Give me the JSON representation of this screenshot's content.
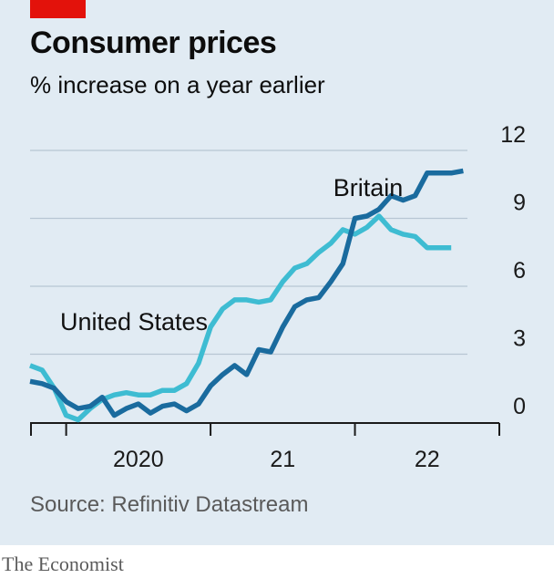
{
  "header": {
    "title": "Consumer prices",
    "subtitle": "% increase on a year earlier"
  },
  "footer": {
    "source": "Source: Refinitiv Datastream",
    "brand": "The Economist"
  },
  "colors": {
    "background": "#e1ebf3",
    "accent": "#e3120b",
    "britain": "#1a6b9e",
    "united_states": "#3ebcd2",
    "grid": "#b7c6d3",
    "axis": "#1a1a1a"
  },
  "chart_data": {
    "type": "line",
    "ylim": [
      0,
      12
    ],
    "yticks": [
      {
        "value": 0,
        "label": "0"
      },
      {
        "value": 3,
        "label": "3"
      },
      {
        "value": 6,
        "label": "6"
      },
      {
        "value": 9,
        "label": "9"
      },
      {
        "value": 12,
        "label": "12"
      }
    ],
    "x_start": "2019-10",
    "x_end": "2023-01",
    "year_ticks": [
      "2020-01",
      "2021-01",
      "2022-01",
      "2023-01"
    ],
    "year_labels": [
      {
        "label": "2020",
        "position": "2020-07"
      },
      {
        "label": "21",
        "position": "2021-07"
      },
      {
        "label": "22",
        "position": "2022-07"
      }
    ],
    "grid": true,
    "series": [
      {
        "name": "Britain",
        "color": "#1a6b9e",
        "x": [
          "2019-10",
          "2019-11",
          "2019-12",
          "2020-01",
          "2020-02",
          "2020-03",
          "2020-04",
          "2020-05",
          "2020-06",
          "2020-07",
          "2020-08",
          "2020-09",
          "2020-10",
          "2020-11",
          "2020-12",
          "2021-01",
          "2021-02",
          "2021-03",
          "2021-04",
          "2021-05",
          "2021-06",
          "2021-07",
          "2021-08",
          "2021-09",
          "2021-10",
          "2021-11",
          "2021-12",
          "2022-01",
          "2022-02",
          "2022-03",
          "2022-04",
          "2022-05",
          "2022-06",
          "2022-07",
          "2022-08",
          "2022-09",
          "2022-10"
        ],
        "y": [
          1.8,
          1.7,
          1.5,
          0.9,
          0.6,
          0.7,
          1.1,
          0.3,
          0.6,
          0.8,
          0.4,
          0.7,
          0.8,
          0.5,
          0.8,
          1.6,
          2.1,
          2.5,
          2.1,
          3.2,
          3.1,
          4.2,
          5.1,
          5.4,
          5.5,
          6.2,
          7.0,
          9.0,
          9.1,
          9.4,
          10.0,
          9.8,
          10.0,
          11.0,
          11.0,
          11.0,
          11.1
        ],
        "label": "Britain"
      },
      {
        "name": "United States",
        "color": "#3ebcd2",
        "x": [
          "2019-10",
          "2019-11",
          "2019-12",
          "2020-01",
          "2020-02",
          "2020-03",
          "2020-04",
          "2020-05",
          "2020-06",
          "2020-07",
          "2020-08",
          "2020-09",
          "2020-10",
          "2020-11",
          "2020-12",
          "2021-01",
          "2021-02",
          "2021-03",
          "2021-04",
          "2021-05",
          "2021-06",
          "2021-07",
          "2021-08",
          "2021-09",
          "2021-10",
          "2021-11",
          "2021-12",
          "2022-01",
          "2022-02",
          "2022-03",
          "2022-04",
          "2022-05",
          "2022-06",
          "2022-07",
          "2022-08",
          "2022-09"
        ],
        "y": [
          2.5,
          2.3,
          1.5,
          0.3,
          0.1,
          0.6,
          1.0,
          1.2,
          1.3,
          1.2,
          1.2,
          1.4,
          1.4,
          1.7,
          2.6,
          4.2,
          5.0,
          5.4,
          5.4,
          5.3,
          5.4,
          6.2,
          6.8,
          7.0,
          7.5,
          7.9,
          8.5,
          8.3,
          8.6,
          9.1,
          8.5,
          8.3,
          8.2,
          7.7,
          7.7,
          7.7
        ],
        "label": "United States"
      }
    ]
  }
}
